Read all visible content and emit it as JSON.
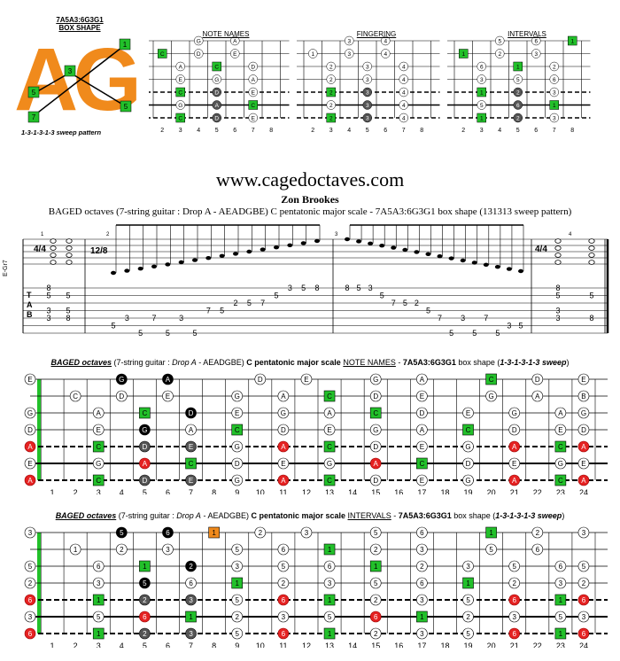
{
  "shape": {
    "code": "7A5A3:6G3G1",
    "label": "BOX SHAPE",
    "letters": "AG",
    "sweep": "1-3-1-3-1-3 sweep pattern",
    "logo_notes": [
      "1",
      "3",
      "5",
      "7",
      "5",
      "3"
    ]
  },
  "mini_panels": [
    {
      "title": "NOTE NAMES"
    },
    {
      "title": "FINGERING"
    },
    {
      "title": "INTERVALS"
    }
  ],
  "mini_frets": [
    "2",
    "3",
    "4",
    "5",
    "6",
    "7",
    "8"
  ],
  "site": "www.cagedoctaves.com",
  "author": "Zon Brookes",
  "subtitle": "BAGED octaves (7-string guitar : Drop A - AEADGBE) C pentatonic major scale - 7A5A3:6G3G1 box shape (131313 sweep pattern)",
  "notation": {
    "time1": "4/4",
    "time2": "12/8",
    "tab_label": "T A B",
    "tuning": "E-Gr7",
    "measures": [
      "1",
      "2",
      "3",
      "4"
    ],
    "tab_numbers": [
      {
        "m": "1",
        "col": 0,
        "str": 0,
        "v": "8"
      },
      {
        "m": "1",
        "col": 0,
        "str": 1,
        "v": "5"
      },
      {
        "m": "1",
        "col": 1,
        "str": 1,
        "v": "5"
      },
      {
        "m": "1",
        "col": 0,
        "str": 3,
        "v": "3"
      },
      {
        "m": "1",
        "col": 1,
        "str": 3,
        "v": "5"
      },
      {
        "m": "1",
        "col": 0,
        "str": 4,
        "v": "3"
      },
      {
        "m": "1",
        "col": 1,
        "str": 4,
        "v": "8"
      }
    ],
    "m2": [
      "5",
      "3",
      "5",
      "7",
      "5",
      "3",
      "5",
      "7",
      "5",
      "2",
      "5",
      "7",
      "5",
      "3",
      "5",
      "8"
    ],
    "m2_str": [
      5,
      4,
      6,
      4,
      6,
      4,
      6,
      3,
      3,
      2,
      2,
      2,
      1,
      0,
      0,
      0
    ],
    "m3": [
      "8",
      "5",
      "3",
      "5",
      "7",
      "5",
      "2",
      "5",
      "7",
      "5",
      "3",
      "5",
      "7",
      "5",
      "3",
      "5"
    ],
    "m3_str": [
      0,
      0,
      0,
      1,
      2,
      2,
      2,
      3,
      4,
      6,
      4,
      6,
      4,
      6,
      5,
      5
    ],
    "m4": [
      "8",
      "5",
      "5",
      "3",
      "3",
      "8"
    ]
  },
  "boards": [
    {
      "title_pre": "BAGED octaves",
      "title_mid": " (7-string guitar : ",
      "title_drop": "Drop A",
      "title_tuning": " - AEADGBE) ",
      "title_scale": "C pentatonic major scale",
      "title_sp": " ",
      "title_kind": "NOTE NAMES",
      "title_dash": " - ",
      "title_shape": "7A5A3:6G3G1",
      "title_box": " box shape (",
      "title_sweep": "1-3-1-3-1-3 sweep",
      "title_end": ")"
    },
    {
      "title_pre": "BAGED octaves",
      "title_mid": " (7-string guitar : ",
      "title_drop": "Drop A",
      "title_tuning": " - AEADGBE) ",
      "title_scale": "C pentatonic major scale",
      "title_sp": " ",
      "title_kind": "INTERVALS",
      "title_dash": " - ",
      "title_shape": "7A5A3:6G3G1",
      "title_box": " box shape (",
      "title_sweep": "1-3-1-3-1-3 sweep",
      "title_end": ")"
    }
  ],
  "fret_numbers": [
    "1",
    "2",
    "3",
    "4",
    "5",
    "6",
    "7",
    "8",
    "9",
    "10",
    "11",
    "12",
    "13",
    "14",
    "15",
    "16",
    "17",
    "18",
    "19",
    "20",
    "21",
    "22",
    "23",
    "24"
  ],
  "colors": {
    "root": "#22c02a",
    "orange": "#f08a1c",
    "red": "#e52222",
    "dark": "#555555",
    "black": "#000000"
  },
  "board_notes": {
    "names": [
      [
        "E",
        "",
        "",
        "G",
        "",
        "A",
        "",
        "",
        "",
        "D",
        "",
        "E",
        "",
        "",
        "G",
        "",
        "A",
        "",
        "",
        "C",
        "",
        "D",
        "",
        "E"
      ],
      [
        "",
        "C",
        "",
        "D",
        "",
        "E",
        "",
        "",
        "G",
        "",
        "A",
        "",
        "C",
        "",
        "D",
        "",
        "E",
        "",
        "",
        "G",
        "",
        "A",
        "",
        "B"
      ],
      [
        "G",
        "",
        "A",
        "",
        "C",
        "",
        "D",
        "",
        "E",
        "",
        "G",
        "",
        "A",
        "",
        "C",
        "",
        "D",
        "",
        "E",
        "",
        "G",
        "",
        "A",
        "G"
      ],
      [
        "D",
        "",
        "E",
        "",
        "G",
        "",
        "A",
        "",
        "C",
        "",
        "D",
        "",
        "E",
        "",
        "G",
        "",
        "A",
        "",
        "C",
        "",
        "D",
        "",
        "E",
        "D"
      ],
      [
        "A",
        "",
        "C",
        "",
        "D",
        "",
        "E",
        "",
        "G",
        "",
        "A",
        "",
        "C",
        "",
        "D",
        "",
        "E",
        "",
        "G",
        "",
        "A",
        "",
        "C",
        "A"
      ],
      [
        "E",
        "",
        "G",
        "",
        "A",
        "",
        "C",
        "",
        "D",
        "",
        "E",
        "",
        "G",
        "",
        "A",
        "",
        "C",
        "",
        "D",
        "",
        "E",
        "",
        "G",
        "E"
      ],
      [
        "A",
        "",
        "C",
        "",
        "D",
        "",
        "E",
        "",
        "G",
        "",
        "A",
        "",
        "C",
        "",
        "D",
        "",
        "E",
        "",
        "G",
        "",
        "A",
        "",
        "C",
        "A"
      ]
    ],
    "intervals": [
      [
        "3",
        "",
        "",
        "5",
        "",
        "6",
        "",
        "1",
        "",
        "2",
        "",
        "3",
        "",
        "",
        "5",
        "",
        "6",
        "",
        "",
        "1",
        "",
        "2",
        "",
        "3"
      ],
      [
        "",
        "1",
        "",
        "2",
        "",
        "3",
        "",
        "",
        "5",
        "",
        "6",
        "",
        "1",
        "",
        "2",
        "",
        "3",
        "",
        "",
        "5",
        "",
        "6",
        "",
        ""
      ],
      [
        "5",
        "",
        "6",
        "",
        "1",
        "",
        "2",
        "",
        "3",
        "",
        "5",
        "",
        "6",
        "",
        "1",
        "",
        "2",
        "",
        "3",
        "",
        "5",
        "",
        "6",
        "5"
      ],
      [
        "2",
        "",
        "3",
        "",
        "5",
        "",
        "6",
        "",
        "1",
        "",
        "2",
        "",
        "3",
        "",
        "5",
        "",
        "6",
        "",
        "1",
        "",
        "2",
        "",
        "3",
        "2"
      ],
      [
        "6",
        "",
        "1",
        "",
        "2",
        "",
        "3",
        "",
        "5",
        "",
        "6",
        "",
        "1",
        "",
        "2",
        "",
        "3",
        "",
        "5",
        "",
        "6",
        "",
        "1",
        "6"
      ],
      [
        "3",
        "",
        "5",
        "",
        "6",
        "",
        "1",
        "",
        "2",
        "",
        "3",
        "",
        "5",
        "",
        "6",
        "",
        "1",
        "",
        "2",
        "",
        "3",
        "",
        "5",
        "3"
      ],
      [
        "6",
        "",
        "1",
        "",
        "2",
        "",
        "3",
        "",
        "5",
        "",
        "6",
        "",
        "1",
        "",
        "2",
        "",
        "3",
        "",
        "5",
        "",
        "6",
        "",
        "1",
        "6"
      ]
    ]
  }
}
